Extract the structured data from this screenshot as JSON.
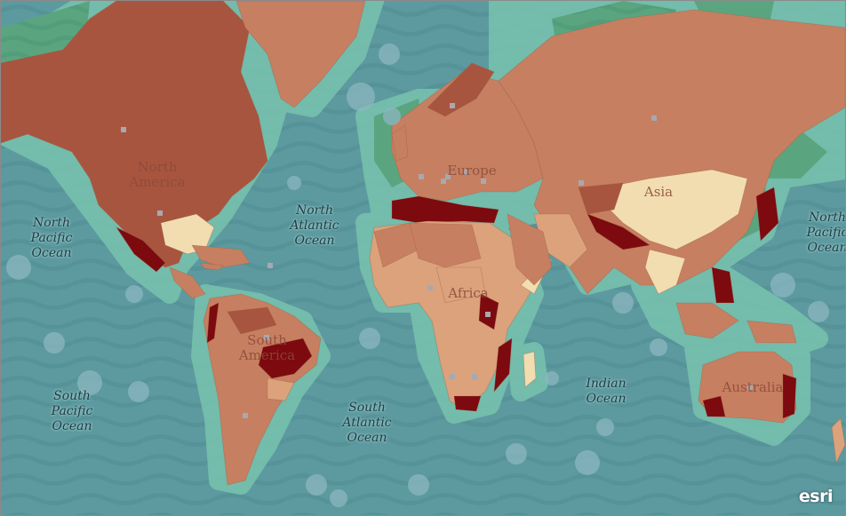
{
  "map": {
    "colors": {
      "ocean": "#5d9aa0",
      "wave": "#4f8d93",
      "coastal_buffer": "#79c2ad",
      "polar_green": "#5aa57f",
      "land_high": "#a8553f",
      "land_mid": "#c67f60",
      "land_low": "#dba27c",
      "land_pale": "#f2ddb0",
      "hotspot": "#7c0a0f"
    },
    "ocean_labels": [
      {
        "id": "north-pacific-west",
        "lines": [
          "North",
          "Pacific",
          "Ocean"
        ]
      },
      {
        "id": "north-atlantic",
        "lines": [
          "North",
          "Atlantic",
          "Ocean"
        ]
      },
      {
        "id": "north-pacific-east",
        "lines": [
          "North",
          "Pacific",
          "Ocean"
        ]
      },
      {
        "id": "south-pacific",
        "lines": [
          "South",
          "Pacific",
          "Ocean"
        ]
      },
      {
        "id": "south-atlantic",
        "lines": [
          "South",
          "Atlantic",
          "Ocean"
        ]
      },
      {
        "id": "indian",
        "lines": [
          "Indian",
          "Ocean"
        ]
      }
    ],
    "continent_labels": [
      {
        "id": "north-america",
        "lines": [
          "North",
          "America"
        ]
      },
      {
        "id": "europe",
        "lines": [
          "Europe"
        ]
      },
      {
        "id": "asia",
        "lines": [
          "Asia"
        ]
      },
      {
        "id": "africa",
        "lines": [
          "Africa"
        ]
      },
      {
        "id": "south-america",
        "lines": [
          "South",
          "America"
        ]
      },
      {
        "id": "australia",
        "lines": [
          "Australia"
        ]
      }
    ],
    "attribution": "esri"
  }
}
